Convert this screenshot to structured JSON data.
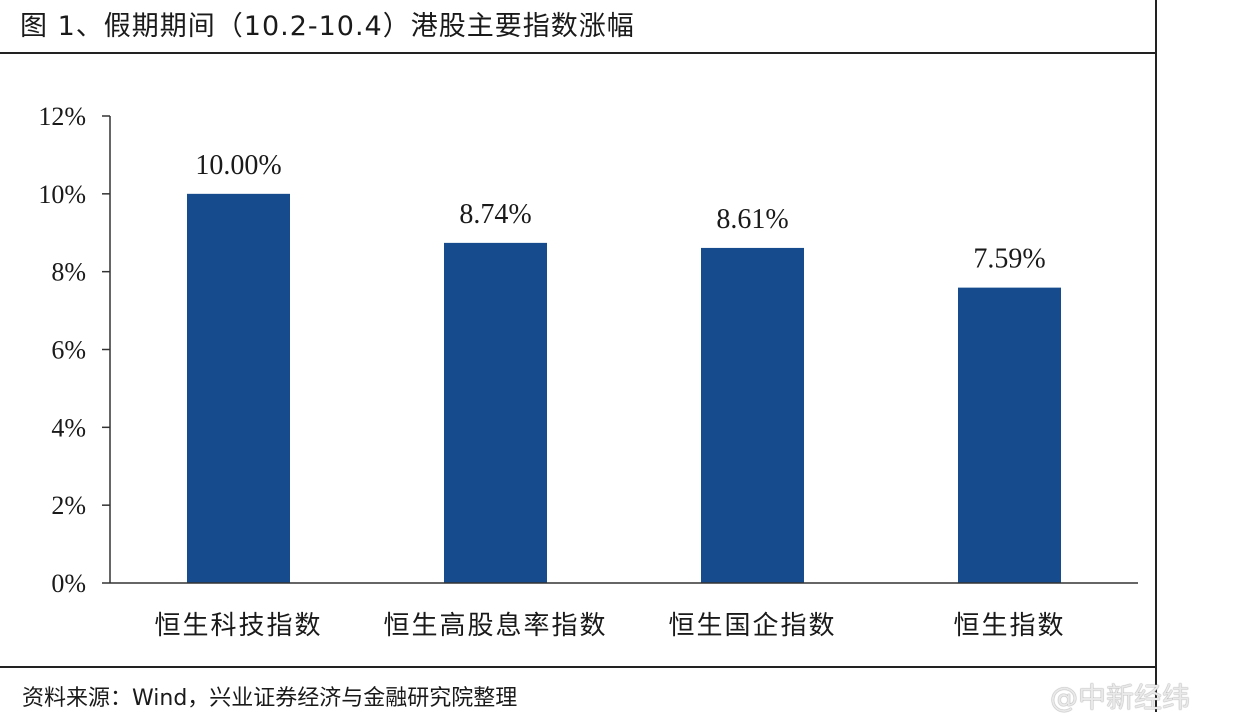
{
  "figure": {
    "title": "图 1、假期期间（10.2-10.4）港股主要指数涨幅",
    "source": "资料来源：Wind，兴业证券经济与金融研究院整理",
    "watermark": "@中新经纬"
  },
  "chart_data": {
    "type": "bar",
    "categories": [
      "恒生科技指数",
      "恒生高股息率指数",
      "恒生国企指数",
      "恒生指数"
    ],
    "values": [
      10.0,
      8.74,
      8.61,
      7.59
    ],
    "data_labels": [
      "10.00%",
      "8.74%",
      "8.61%",
      "7.59%"
    ],
    "ylim": [
      0,
      12
    ],
    "yticks": [
      0,
      2,
      4,
      6,
      8,
      10,
      12
    ],
    "ytick_labels": [
      "0%",
      "2%",
      "4%",
      "6%",
      "8%",
      "10%",
      "12%"
    ],
    "bar_color": "#164c8d",
    "grid": false,
    "legend": "none"
  }
}
